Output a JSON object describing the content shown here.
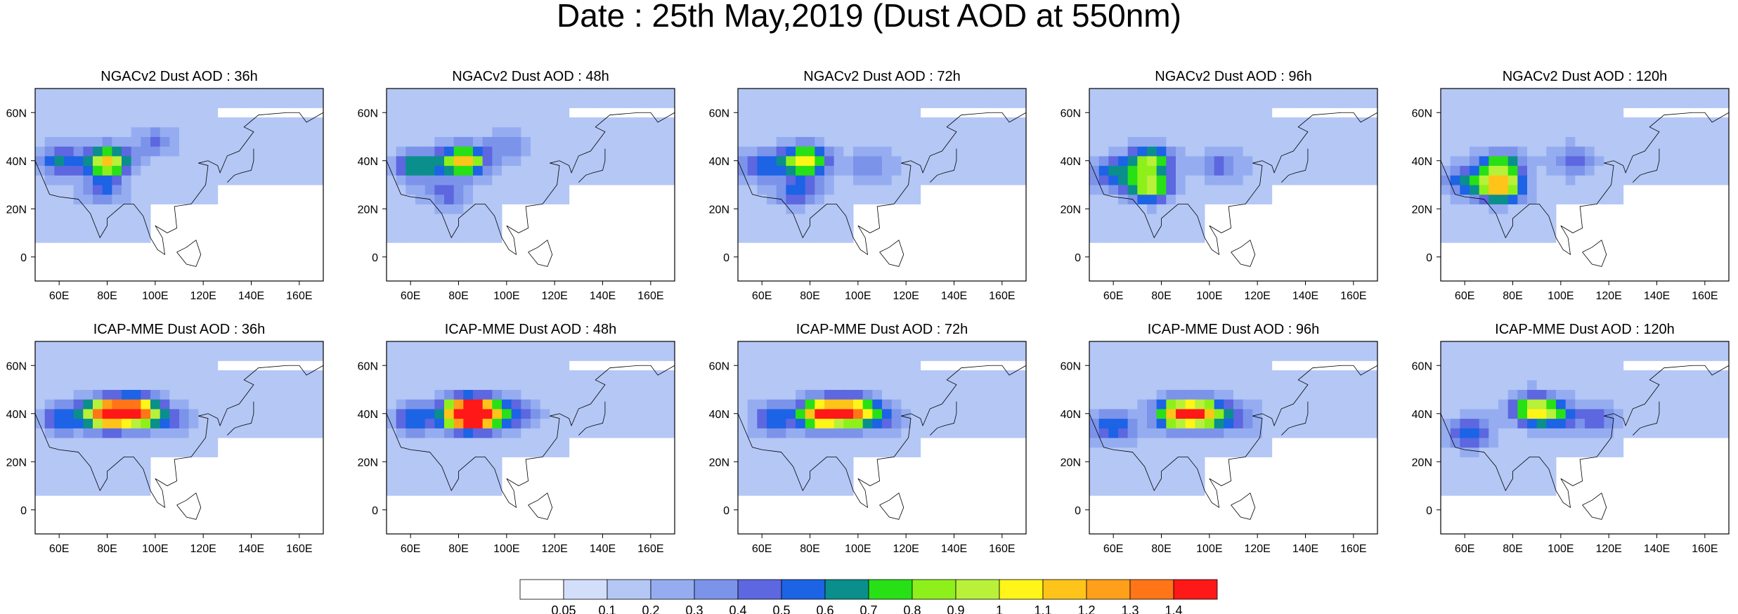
{
  "title": "Date : 25th May,2019 (Dust AOD at 550nm)",
  "chart_data": {
    "type": "heatmap",
    "title": "Date : 25th May,2019 (Dust AOD at 550nm)",
    "x_ticks": [
      "60E",
      "80E",
      "100E",
      "120E",
      "140E",
      "160E"
    ],
    "y_ticks": [
      "60N",
      "40N",
      "20N",
      "0"
    ],
    "lon_range": [
      50,
      170
    ],
    "lat_range": [
      -10,
      70
    ],
    "grid": false,
    "colorbar": {
      "placement": "bottom",
      "levels": [
        "0.05",
        "0.1",
        "0.2",
        "0.3",
        "0.4",
        "0.5",
        "0.6",
        "0.7",
        "0.8",
        "0.9",
        "1",
        "1.1",
        "1.2",
        "1.3",
        "1.4"
      ],
      "colors": [
        "#ffffff",
        "#d3defb",
        "#b4c7f5",
        "#95adf0",
        "#7c93ea",
        "#5c67e0",
        "#1c63e6",
        "#0a8f8c",
        "#28e016",
        "#8ef01a",
        "#b8f03a",
        "#fff518",
        "#ffc41a",
        "#ffa01a",
        "#ff7518",
        "#ff1818"
      ]
    },
    "panels": [
      {
        "title": "NGACv2 Dust AOD : 36h",
        "blobs": [
          {
            "lon": 80,
            "lat": 40,
            "aod": 1.0
          },
          {
            "lon": 60,
            "lat": 40,
            "aod": 0.45
          },
          {
            "lon": 78,
            "lat": 28,
            "aod": 0.35
          },
          {
            "lon": 100,
            "lat": 48,
            "aod": 0.25
          }
        ]
      },
      {
        "title": "NGACv2 Dust AOD : 48h",
        "blobs": [
          {
            "lon": 82,
            "lat": 40,
            "aod": 1.0
          },
          {
            "lon": 63,
            "lat": 38,
            "aod": 0.6
          },
          {
            "lon": 75,
            "lat": 26,
            "aod": 0.3
          },
          {
            "lon": 100,
            "lat": 46,
            "aod": 0.25
          }
        ]
      },
      {
        "title": "NGACv2 Dust AOD : 72h",
        "blobs": [
          {
            "lon": 78,
            "lat": 40,
            "aod": 0.95
          },
          {
            "lon": 60,
            "lat": 38,
            "aod": 0.45
          },
          {
            "lon": 75,
            "lat": 27,
            "aod": 0.4
          },
          {
            "lon": 105,
            "lat": 38,
            "aod": 0.25
          }
        ]
      },
      {
        "title": "NGACv2 Dust AOD : 96h",
        "blobs": [
          {
            "lon": 75,
            "lat": 40,
            "aod": 0.75
          },
          {
            "lon": 75,
            "lat": 29,
            "aod": 0.8
          },
          {
            "lon": 60,
            "lat": 35,
            "aod": 0.45
          },
          {
            "lon": 105,
            "lat": 38,
            "aod": 0.3
          }
        ]
      },
      {
        "title": "NGACv2 Dust AOD : 120h",
        "blobs": [
          {
            "lon": 75,
            "lat": 29,
            "aod": 1.0
          },
          {
            "lon": 75,
            "lat": 38,
            "aod": 0.65
          },
          {
            "lon": 60,
            "lat": 32,
            "aod": 0.45
          },
          {
            "lon": 105,
            "lat": 40,
            "aod": 0.3
          }
        ]
      },
      {
        "title": "ICAP-MME Dust AOD : 36h",
        "blobs": [
          {
            "lon": 80,
            "lat": 40,
            "aod": 1.4
          },
          {
            "lon": 92,
            "lat": 41,
            "aod": 1.3
          },
          {
            "lon": 62,
            "lat": 38,
            "aod": 0.45
          },
          {
            "lon": 105,
            "lat": 38,
            "aod": 0.3
          }
        ]
      },
      {
        "title": "ICAP-MME Dust AOD : 48h",
        "blobs": [
          {
            "lon": 82,
            "lat": 40,
            "aod": 1.4
          },
          {
            "lon": 90,
            "lat": 40,
            "aod": 1.2
          },
          {
            "lon": 62,
            "lat": 38,
            "aod": 0.45
          },
          {
            "lon": 105,
            "lat": 40,
            "aod": 0.3
          }
        ]
      },
      {
        "title": "ICAP-MME Dust AOD : 72h",
        "blobs": [
          {
            "lon": 85,
            "lat": 40,
            "aod": 1.3
          },
          {
            "lon": 98,
            "lat": 41,
            "aod": 1.1
          },
          {
            "lon": 65,
            "lat": 38,
            "aod": 0.45
          },
          {
            "lon": 110,
            "lat": 38,
            "aod": 0.3
          }
        ]
      },
      {
        "title": "ICAP-MME Dust AOD : 96h",
        "blobs": [
          {
            "lon": 87,
            "lat": 40,
            "aod": 1.05
          },
          {
            "lon": 98,
            "lat": 40,
            "aod": 0.9
          },
          {
            "lon": 60,
            "lat": 35,
            "aod": 0.45
          },
          {
            "lon": 112,
            "lat": 38,
            "aod": 0.3
          }
        ]
      },
      {
        "title": "ICAP-MME Dust AOD : 120h",
        "blobs": [
          {
            "lon": 88,
            "lat": 42,
            "aod": 0.75
          },
          {
            "lon": 97,
            "lat": 40,
            "aod": 0.5
          },
          {
            "lon": 62,
            "lat": 32,
            "aod": 0.45
          },
          {
            "lon": 115,
            "lat": 38,
            "aod": 0.35
          }
        ]
      }
    ]
  }
}
